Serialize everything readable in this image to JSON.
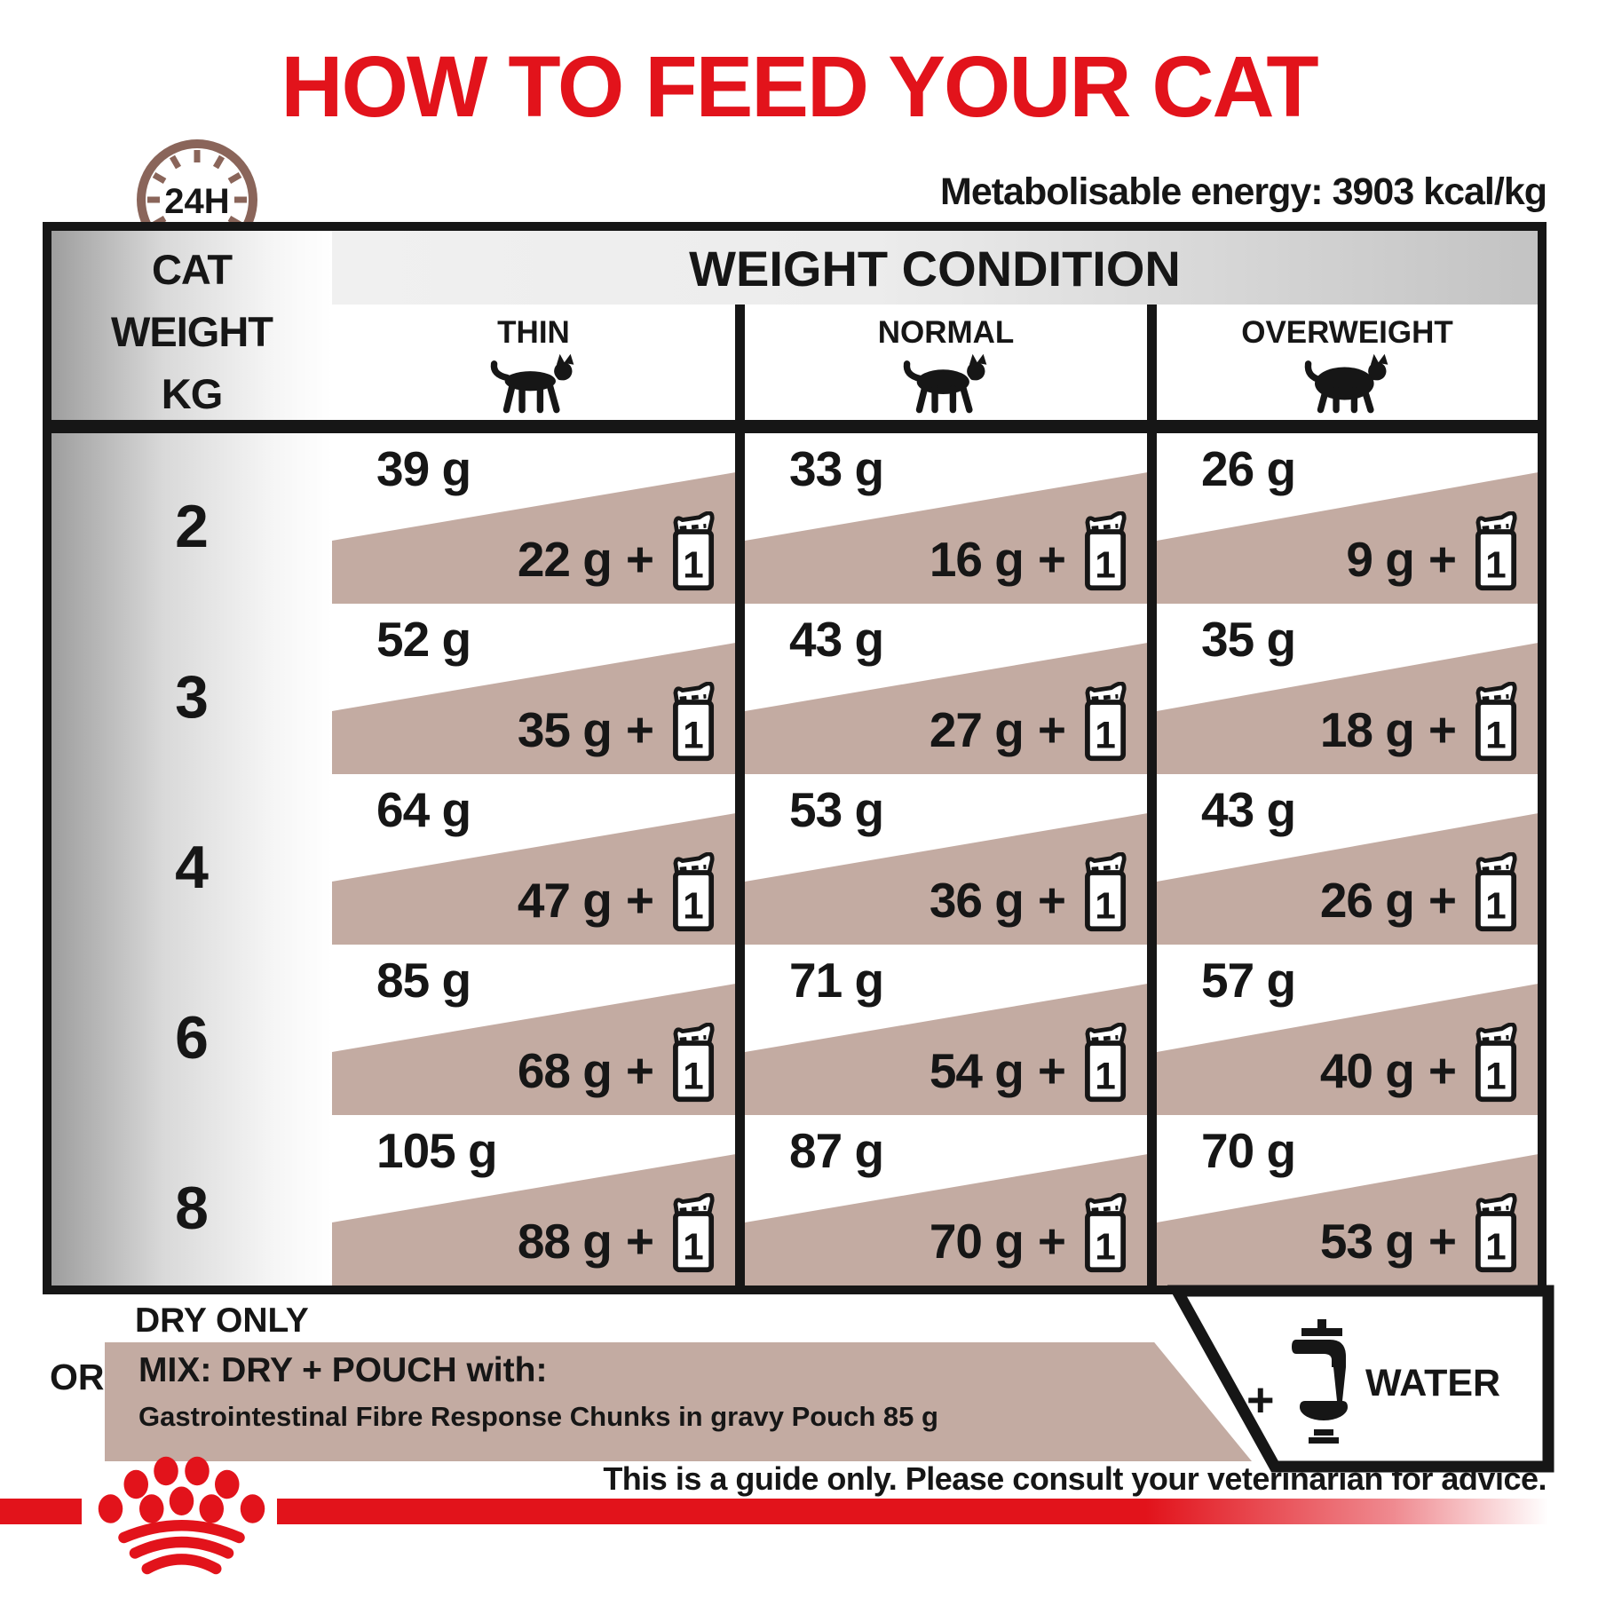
{
  "title": "HOW TO FEED YOUR CAT",
  "energy_note": "Metabolisable energy: 3903 kcal/kg",
  "clock": {
    "label": "24H"
  },
  "table": {
    "corner_lines": [
      "CAT",
      "WEIGHT",
      "KG"
    ],
    "main_header": "WEIGHT CONDITION",
    "conditions": [
      "THIN",
      "NORMAL",
      "OVERWEIGHT"
    ],
    "pouch_count": "1",
    "mix_plus": "+",
    "rows": [
      {
        "kg": "2",
        "cells": [
          {
            "dry": "39 g",
            "mix": "22 g"
          },
          {
            "dry": "33 g",
            "mix": "16 g"
          },
          {
            "dry": "26 g",
            "mix": "9 g"
          }
        ]
      },
      {
        "kg": "3",
        "cells": [
          {
            "dry": "52 g",
            "mix": "35 g"
          },
          {
            "dry": "43 g",
            "mix": "27 g"
          },
          {
            "dry": "35 g",
            "mix": "18 g"
          }
        ]
      },
      {
        "kg": "4",
        "cells": [
          {
            "dry": "64 g",
            "mix": "47 g"
          },
          {
            "dry": "53 g",
            "mix": "36 g"
          },
          {
            "dry": "43 g",
            "mix": "26 g"
          }
        ]
      },
      {
        "kg": "6",
        "cells": [
          {
            "dry": "85 g",
            "mix": "68 g"
          },
          {
            "dry": "71 g",
            "mix": "54 g"
          },
          {
            "dry": "57 g",
            "mix": "40 g"
          }
        ]
      },
      {
        "kg": "8",
        "cells": [
          {
            "dry": "105 g",
            "mix": "88 g"
          },
          {
            "dry": "87 g",
            "mix": "70 g"
          },
          {
            "dry": "70 g",
            "mix": "53 g"
          }
        ]
      }
    ]
  },
  "footer": {
    "dry_only": "DRY ONLY",
    "or": "OR",
    "mix_title": "MIX: DRY + POUCH with:",
    "mix_subtitle": "Gastrointestinal Fibre Response Chunks in gravy Pouch 85 g",
    "plus": "+",
    "water": "WATER",
    "guide": "This is a guide only. Please consult your veterinarian for advice."
  },
  "colors": {
    "accent_red": "#e2131b",
    "taupe": "#c3aba2",
    "clock_brown": "#8a655a",
    "ink": "#161616"
  }
}
